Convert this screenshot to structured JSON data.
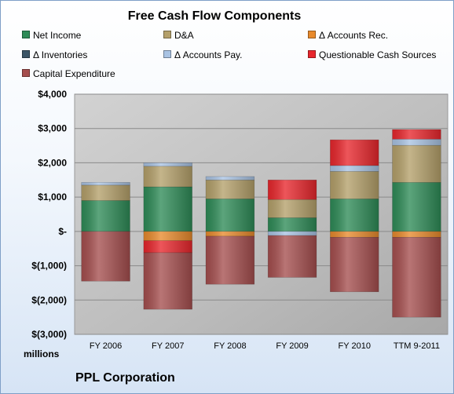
{
  "chart_data": {
    "type": "bar",
    "stacked": true,
    "title": "Free Cash Flow Components",
    "units_label": "millions",
    "footer": "PPL Corporation",
    "categories": [
      "FY 2006",
      "FY 2007",
      "FY 2008",
      "FY 2009",
      "FY 2010",
      "TTM 9-2011"
    ],
    "ylim": [
      -3000,
      4000
    ],
    "yticks": [
      4000,
      3000,
      2000,
      1000,
      0,
      -1000,
      -2000,
      -3000
    ],
    "ytick_labels": [
      "$4,000",
      "$3,000",
      "$2,000",
      "$1,000",
      "$-",
      "$(1,000)",
      "$(2,000)",
      "$(3,000)"
    ],
    "grid": true,
    "legend_position": "top",
    "series": [
      {
        "name": "Net Income",
        "color": "#2e8b57",
        "values": [
          900,
          1300,
          950,
          400,
          950,
          1430
        ]
      },
      {
        "name": "D&A",
        "color": "#b4a06a",
        "values": [
          450,
          600,
          550,
          530,
          800,
          1080
        ]
      },
      {
        "name": "Δ Accounts Rec.",
        "color": "#e88a2c",
        "values": [
          0,
          -270,
          -140,
          0,
          -170,
          -170
        ]
      },
      {
        "name": "Δ Inventories",
        "color": "#3b5566",
        "values": [
          0,
          0,
          0,
          0,
          0,
          0
        ]
      },
      {
        "name": "Δ Accounts Pay.",
        "color": "#a9c3e3",
        "values": [
          80,
          100,
          100,
          -120,
          170,
          180
        ]
      },
      {
        "name": "Questionable Cash Sources",
        "color": "#e8262c",
        "values": [
          0,
          -350,
          0,
          570,
          750,
          280
        ]
      },
      {
        "name": "Capital Expenditure",
        "color": "#a54e4e",
        "values": [
          -1450,
          -1650,
          -1400,
          -1220,
          -1590,
          -2330
        ]
      }
    ]
  }
}
